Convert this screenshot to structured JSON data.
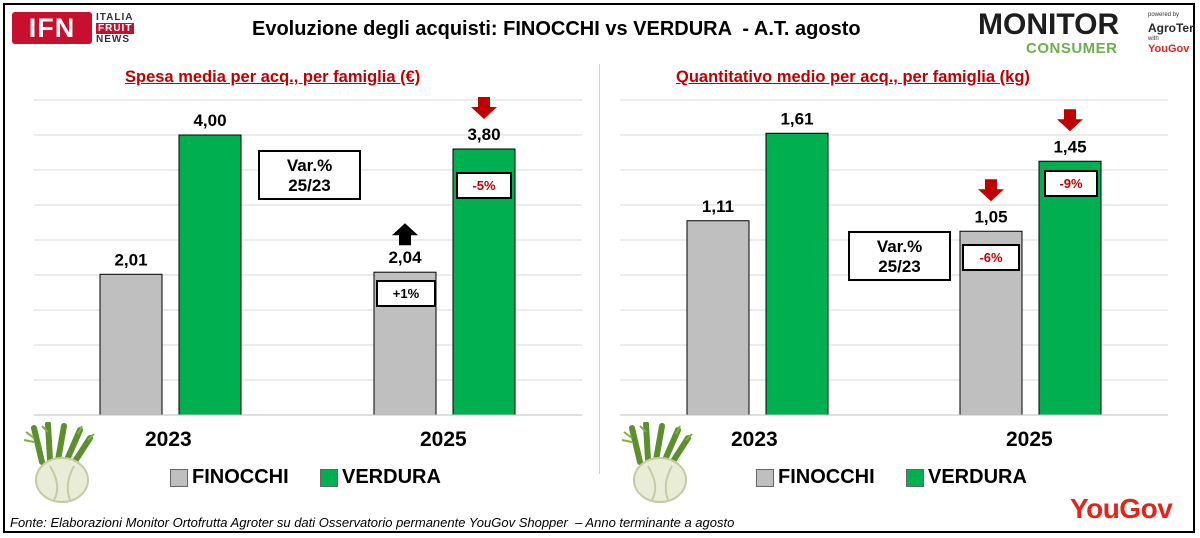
{
  "title": "Evoluzione degli acquisti: FINOCCHI vs VERDURA  - A.T. agosto",
  "ifn_logo": {
    "mark": "IFN",
    "line1": "ITALIA",
    "line2": "FRUIT",
    "line3": "NEWS"
  },
  "monitor_logo": {
    "word1": "MONITOR",
    "word2": "CONSUMER",
    "powered": "powered by",
    "agroter": "AgroTer",
    "with": "with",
    "yougov": "YouGov"
  },
  "yougov_logo": "YouGov",
  "source": "Fonte: Elaborazioni Monitor Ortofrutta Agroter su dati Osservatorio permanente YouGov Shopper  – Anno terminante a agosto",
  "colors": {
    "finocchi": "#bfbfbf",
    "verdura": "#00b050",
    "title_red": "#c00000",
    "arrow_red": "#c00000",
    "arrow_black": "#000000"
  },
  "chart_data": [
    {
      "type": "bar",
      "title": "Spesa media per acq., per famiglia (€)",
      "categories": [
        "2023",
        "2025"
      ],
      "series": [
        {
          "name": "FINOCCHI",
          "values": [
            2.01,
            2.04
          ],
          "labels": [
            "2,01",
            "2,04"
          ]
        },
        {
          "name": "VERDURA",
          "values": [
            4.0,
            3.8
          ],
          "labels": [
            "4,00",
            "3,80"
          ]
        }
      ],
      "ylim": [
        0,
        4.5
      ],
      "gridlines": true,
      "var_box": "Var.%\n25/23",
      "var_box_line1": "Var.%",
      "var_box_line2": "25/23",
      "changes": {
        "FINOCCHI": "+1%",
        "VERDURA": "-5%"
      },
      "arrows": {
        "FINOCCHI": "up",
        "VERDURA": "down"
      }
    },
    {
      "type": "bar",
      "title": "Quantitativo medio per acq., per famiglia (kg)",
      "categories": [
        "2023",
        "2025"
      ],
      "series": [
        {
          "name": "FINOCCHI",
          "values": [
            1.11,
            1.05
          ],
          "labels": [
            "1,11",
            "1,05"
          ]
        },
        {
          "name": "VERDURA",
          "values": [
            1.61,
            1.45
          ],
          "labels": [
            "1,61",
            "1,45"
          ]
        }
      ],
      "ylim": [
        0,
        1.8
      ],
      "gridlines": true,
      "var_box": "Var.%\n25/23",
      "var_box_line1": "Var.%",
      "var_box_line2": "25/23",
      "changes": {
        "FINOCCHI": "-6%",
        "VERDURA": "-9%"
      },
      "arrows": {
        "FINOCCHI": "down",
        "VERDURA": "down"
      }
    }
  ],
  "legend": {
    "item1": "FINOCCHI",
    "item2": "VERDURA"
  }
}
